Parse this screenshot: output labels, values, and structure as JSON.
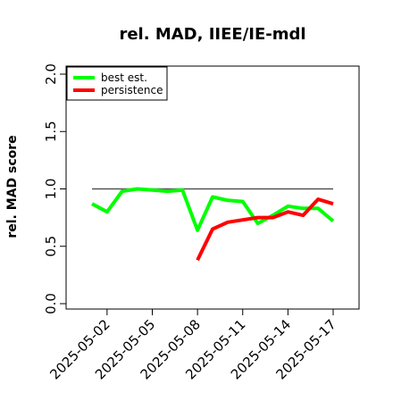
{
  "chart_data": {
    "type": "line",
    "title": "rel. MAD, IIEE/IE-mdl",
    "xlabel": "",
    "ylabel": "rel. MAD score",
    "x": [
      "2025-05-01",
      "2025-05-02",
      "2025-05-03",
      "2025-05-04",
      "2025-05-05",
      "2025-05-06",
      "2025-05-07",
      "2025-05-08",
      "2025-05-09",
      "2025-05-10",
      "2025-05-11",
      "2025-05-12",
      "2025-05-13",
      "2025-05-14",
      "2025-05-15",
      "2025-05-16",
      "2025-05-17"
    ],
    "x_tick_labels": [
      "2025-05-02",
      "2025-05-05",
      "2025-05-08",
      "2025-05-11",
      "2025-05-14",
      "2025-05-17"
    ],
    "x_tick_dates": [
      "2025-05-02",
      "2025-05-05",
      "2025-05-08",
      "2025-05-11",
      "2025-05-14",
      "2025-05-17"
    ],
    "ylim": [
      0,
      2
    ],
    "y_ticks": [
      0.0,
      0.5,
      1.0,
      1.5,
      2.0
    ],
    "y_tick_labels": [
      "0.0",
      "0.5",
      "1.0",
      "1.5",
      "2.0"
    ],
    "reference_line": 1.0,
    "legend_position": "top-left",
    "grid": false,
    "series": [
      {
        "name": "best est.",
        "color": "#00ff00",
        "values": [
          0.87,
          0.8,
          0.98,
          1.0,
          0.99,
          0.98,
          0.99,
          0.64,
          0.93,
          0.9,
          0.89,
          0.7,
          0.77,
          0.85,
          0.83,
          0.83,
          0.72
        ]
      },
      {
        "name": "persistence",
        "color": "#ff0000",
        "values": [
          null,
          null,
          null,
          null,
          null,
          null,
          null,
          0.38,
          0.65,
          0.71,
          0.73,
          0.75,
          0.75,
          0.8,
          0.77,
          0.91,
          0.87
        ]
      }
    ]
  }
}
